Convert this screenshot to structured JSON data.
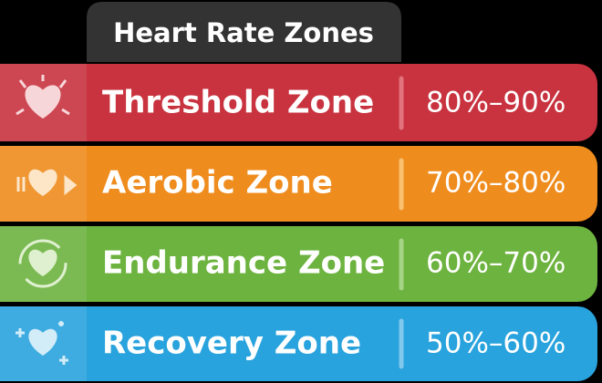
{
  "header": {
    "title": "Heart Rate Zones"
  },
  "zones": [
    {
      "name": "Threshold Zone",
      "range": "80%–90%"
    },
    {
      "name": "Aerobic Zone",
      "range": "70%–80%"
    },
    {
      "name": "Endurance Zone",
      "range": "60%–70%"
    },
    {
      "name": "Recovery Zone",
      "range": "50%–60%"
    }
  ]
}
